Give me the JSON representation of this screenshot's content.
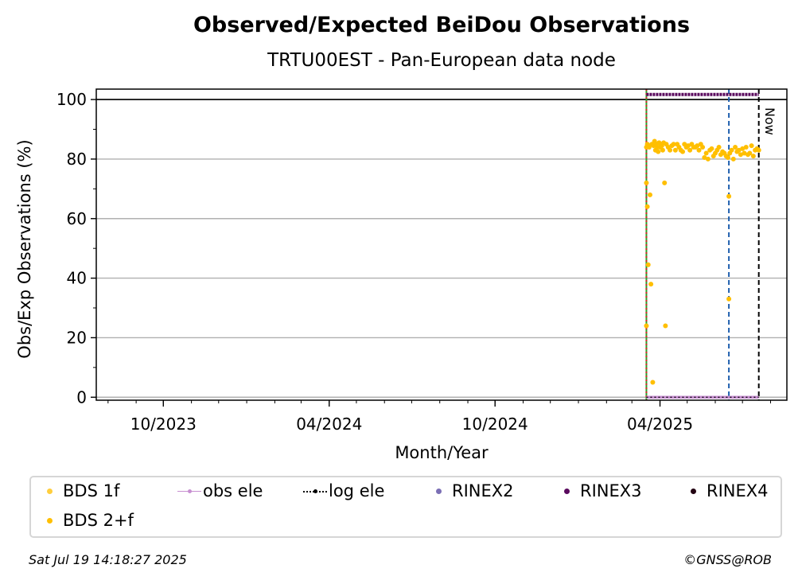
{
  "page": {
    "timestamp": "Sat Jul 19 14:18:27 2025",
    "copyright": "©GNSS@ROB"
  },
  "chart_data": {
    "type": "scatter",
    "title": "Observed/Expected BeiDou Observations",
    "subtitle": "TRTU00EST - Pan-European data node",
    "xlabel": "Month/Year",
    "ylabel": "Obs/Exp Observations (%)",
    "xlim": [
      "2023-07-19",
      "2025-08-19"
    ],
    "ylim": [
      -1,
      103.5
    ],
    "x_ticks": [
      "2023-10-01",
      "2024-04-01",
      "2024-10-01",
      "2025-04-01"
    ],
    "x_tick_labels": [
      "10/2023",
      "04/2024",
      "10/2024",
      "04/2025"
    ],
    "y_ticks": [
      0,
      20,
      40,
      60,
      80,
      100
    ],
    "y_tick_labels": [
      "0",
      "20",
      "40",
      "60",
      "80",
      "100"
    ],
    "grid": "horizontal",
    "reference_line_y": 100,
    "vertical_lines": [
      {
        "date": "2025-03-17",
        "style": "solid",
        "color": "#2ca02c"
      },
      {
        "date": "2025-03-17",
        "style": "dotted",
        "color": "#d62728"
      },
      {
        "date": "2025-06-16",
        "style": "dashed",
        "color": "#1f5fae"
      },
      {
        "date": "2025-07-19",
        "style": "dashed",
        "color": "#000000",
        "label": "Now"
      }
    ],
    "legend_location": "bottom",
    "series": [
      {
        "name": "BDS 1f",
        "color": "#ffce3d",
        "x": [],
        "y": []
      },
      {
        "name": "BDS 2+f",
        "color": "#ffbf00",
        "x": [
          "2025-03-17",
          "2025-03-17",
          "2025-03-17",
          "2025-03-18",
          "2025-03-18",
          "2025-03-19",
          "2025-03-20",
          "2025-03-21",
          "2025-03-22",
          "2025-03-23",
          "2025-03-24",
          "2025-03-25",
          "2025-03-26",
          "2025-03-27",
          "2025-03-28",
          "2025-03-29",
          "2025-03-30",
          "2025-03-31",
          "2025-04-01",
          "2025-04-02",
          "2025-04-03",
          "2025-04-04",
          "2025-04-05",
          "2025-04-06",
          "2025-04-07",
          "2025-04-08",
          "2025-04-10",
          "2025-04-12",
          "2025-04-14",
          "2025-04-16",
          "2025-04-18",
          "2025-04-20",
          "2025-04-22",
          "2025-04-24",
          "2025-04-26",
          "2025-04-28",
          "2025-04-30",
          "2025-05-02",
          "2025-05-04",
          "2025-05-06",
          "2025-05-08",
          "2025-05-10",
          "2025-05-12",
          "2025-05-14",
          "2025-05-16",
          "2025-05-18",
          "2025-05-20",
          "2025-05-22",
          "2025-05-24",
          "2025-05-26",
          "2025-05-28",
          "2025-05-30",
          "2025-06-01",
          "2025-06-03",
          "2025-06-05",
          "2025-06-07",
          "2025-06-09",
          "2025-06-11",
          "2025-06-13",
          "2025-06-15",
          "2025-06-16",
          "2025-06-16",
          "2025-06-17",
          "2025-06-19",
          "2025-06-21",
          "2025-06-23",
          "2025-06-25",
          "2025-06-27",
          "2025-06-29",
          "2025-07-01",
          "2025-07-03",
          "2025-07-05",
          "2025-07-07",
          "2025-07-09",
          "2025-07-11",
          "2025-07-13",
          "2025-07-15",
          "2025-07-17",
          "2025-07-19"
        ],
        "y": [
          24,
          72,
          84,
          64,
          85,
          44.5,
          84,
          68,
          38,
          85,
          5,
          84.5,
          86,
          83,
          85,
          84,
          82.5,
          85.5,
          84,
          85,
          84.5,
          83,
          85.5,
          72,
          24,
          85,
          84,
          83,
          84.5,
          85,
          83,
          85,
          84,
          83,
          82.5,
          85,
          84,
          84.5,
          83,
          85,
          84,
          84,
          84.5,
          83,
          85,
          84,
          80.5,
          82,
          80,
          83,
          83.5,
          81,
          82,
          83,
          84,
          81.5,
          82.5,
          82,
          81,
          80.5,
          67.5,
          33,
          82,
          83,
          80,
          84,
          82.5,
          83,
          81.5,
          83.5,
          82,
          84,
          81.5,
          82,
          84.5,
          81,
          83,
          83.5,
          83
        ]
      },
      {
        "name": "obs ele",
        "color": "#c78fd1",
        "x": [],
        "y": []
      },
      {
        "name": "log ele",
        "color": "#000000",
        "x": [],
        "y": []
      },
      {
        "name": "RINEX2",
        "color": "#7b6fb5",
        "x": [],
        "y": []
      },
      {
        "name": "RINEX3",
        "color": "#5a0a5e",
        "x": [],
        "y": []
      },
      {
        "name": "RINEX4",
        "color": "#240313",
        "x": [],
        "y": []
      }
    ]
  }
}
